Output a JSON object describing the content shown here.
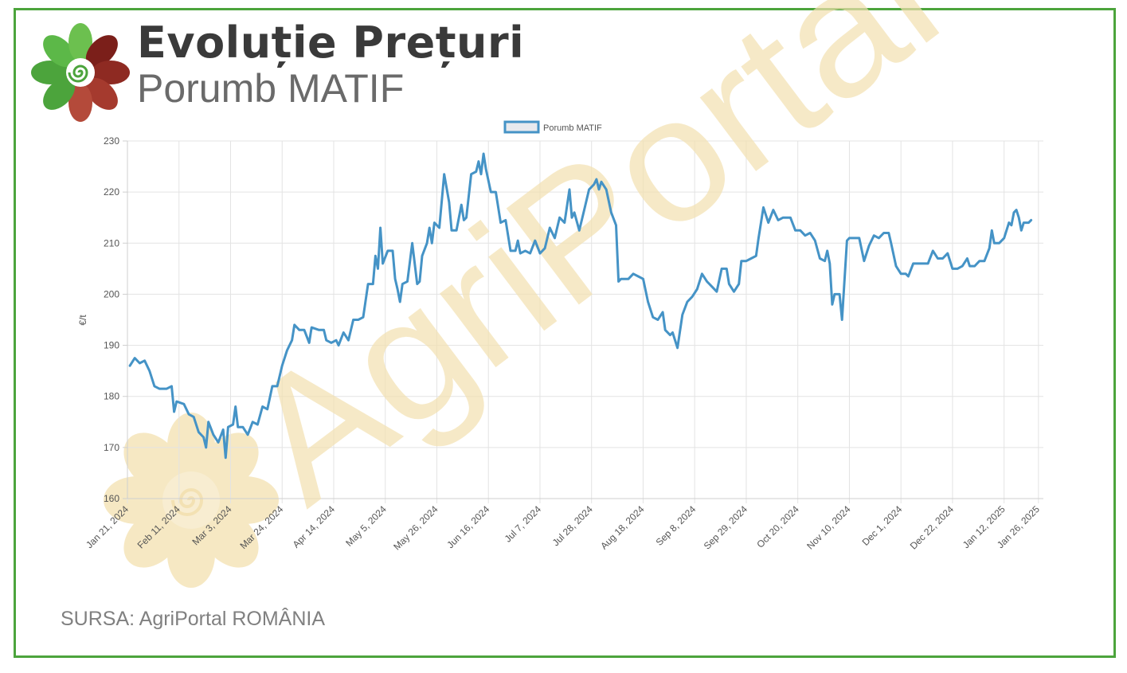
{
  "header": {
    "title": "Evoluție Prețuri",
    "subtitle": "Porumb MATIF"
  },
  "footer": {
    "source": "SURSA: AgriPortal ROMÂNIA"
  },
  "watermark": {
    "text": "AgriPortal"
  },
  "colors": {
    "frame": "#4ca43c",
    "line": "#4593c6",
    "grid": "#e3e3e3",
    "watermark": "#f3e1b0"
  },
  "chart_data": {
    "type": "line",
    "title": "",
    "xlabel": "",
    "ylabel": "€/t",
    "ylim": [
      160,
      230
    ],
    "yticks": [
      160,
      170,
      180,
      190,
      200,
      210,
      220,
      230
    ],
    "xlim": [
      "2024-01-21",
      "2025-01-28"
    ],
    "xticks": [
      "Jan 21, 2024",
      "Feb 11, 2024",
      "Mar 3, 2024",
      "Mar 24, 2024",
      "Apr 14, 2024",
      "May 5, 2024",
      "May 26, 2024",
      "Jun 16, 2024",
      "Jul 7, 2024",
      "Jul 28, 2024",
      "Aug 18, 2024",
      "Sep 8, 2024",
      "Sep 29, 2024",
      "Oct 20, 2024",
      "Nov 10, 2024",
      "Dec 1, 2024",
      "Dec 22, 2024",
      "Jan 12, 2025",
      "Jan 26, 2025"
    ],
    "xtick_dates": [
      "2024-01-21",
      "2024-02-11",
      "2024-03-03",
      "2024-03-24",
      "2024-04-14",
      "2024-05-05",
      "2024-05-26",
      "2024-06-16",
      "2024-07-07",
      "2024-07-28",
      "2024-08-18",
      "2024-09-08",
      "2024-09-29",
      "2024-10-20",
      "2024-11-10",
      "2024-12-01",
      "2024-12-22",
      "2025-01-12",
      "2025-01-26"
    ],
    "grid": true,
    "legend_position": "top",
    "series": [
      {
        "name": "Porumb MATIF",
        "points": [
          [
            "2024-01-22",
            186
          ],
          [
            "2024-01-24",
            187.5
          ],
          [
            "2024-01-26",
            186.5
          ],
          [
            "2024-01-28",
            187
          ],
          [
            "2024-01-30",
            185
          ],
          [
            "2024-02-01",
            182
          ],
          [
            "2024-02-03",
            181.5
          ],
          [
            "2024-02-06",
            181.5
          ],
          [
            "2024-02-08",
            182
          ],
          [
            "2024-02-09",
            177
          ],
          [
            "2024-02-10",
            179
          ],
          [
            "2024-02-13",
            178.5
          ],
          [
            "2024-02-15",
            176.5
          ],
          [
            "2024-02-17",
            176
          ],
          [
            "2024-02-19",
            173
          ],
          [
            "2024-02-21",
            172
          ],
          [
            "2024-02-22",
            170
          ],
          [
            "2024-02-23",
            175
          ],
          [
            "2024-02-25",
            172.5
          ],
          [
            "2024-02-27",
            171
          ],
          [
            "2024-02-29",
            173.5
          ],
          [
            "2024-03-01",
            168
          ],
          [
            "2024-03-02",
            174
          ],
          [
            "2024-03-04",
            174.5
          ],
          [
            "2024-03-05",
            178
          ],
          [
            "2024-03-06",
            174
          ],
          [
            "2024-03-08",
            174
          ],
          [
            "2024-03-10",
            172.5
          ],
          [
            "2024-03-12",
            175
          ],
          [
            "2024-03-14",
            174.5
          ],
          [
            "2024-03-16",
            178
          ],
          [
            "2024-03-18",
            177.5
          ],
          [
            "2024-03-20",
            182
          ],
          [
            "2024-03-22",
            182
          ],
          [
            "2024-03-24",
            186
          ],
          [
            "2024-03-26",
            189
          ],
          [
            "2024-03-28",
            191
          ],
          [
            "2024-03-29",
            194
          ],
          [
            "2024-03-31",
            193
          ],
          [
            "2024-04-02",
            193
          ],
          [
            "2024-04-04",
            190.5
          ],
          [
            "2024-04-05",
            193.5
          ],
          [
            "2024-04-08",
            193
          ],
          [
            "2024-04-10",
            193
          ],
          [
            "2024-04-11",
            191
          ],
          [
            "2024-04-13",
            190.5
          ],
          [
            "2024-04-15",
            191
          ],
          [
            "2024-04-16",
            190
          ],
          [
            "2024-04-18",
            192.5
          ],
          [
            "2024-04-20",
            191
          ],
          [
            "2024-04-22",
            195
          ],
          [
            "2024-04-24",
            195
          ],
          [
            "2024-04-26",
            195.5
          ],
          [
            "2024-04-28",
            202
          ],
          [
            "2024-04-30",
            202
          ],
          [
            "2024-05-01",
            207.5
          ],
          [
            "2024-05-02",
            205
          ],
          [
            "2024-05-03",
            213
          ],
          [
            "2024-05-04",
            206
          ],
          [
            "2024-05-06",
            208.5
          ],
          [
            "2024-05-08",
            208.5
          ],
          [
            "2024-05-09",
            203
          ],
          [
            "2024-05-10",
            201
          ],
          [
            "2024-05-11",
            198.5
          ],
          [
            "2024-05-12",
            202
          ],
          [
            "2024-05-14",
            202.5
          ],
          [
            "2024-05-16",
            210
          ],
          [
            "2024-05-18",
            202
          ],
          [
            "2024-05-19",
            202.5
          ],
          [
            "2024-05-20",
            207.5
          ],
          [
            "2024-05-22",
            210
          ],
          [
            "2024-05-23",
            213
          ],
          [
            "2024-05-24",
            210
          ],
          [
            "2024-05-25",
            214
          ],
          [
            "2024-05-27",
            213
          ],
          [
            "2024-05-29",
            223.5
          ],
          [
            "2024-05-31",
            218
          ],
          [
            "2024-06-01",
            212.5
          ],
          [
            "2024-06-03",
            212.5
          ],
          [
            "2024-06-05",
            217.5
          ],
          [
            "2024-06-06",
            214.5
          ],
          [
            "2024-06-07",
            215
          ],
          [
            "2024-06-09",
            223.5
          ],
          [
            "2024-06-11",
            224
          ],
          [
            "2024-06-12",
            226
          ],
          [
            "2024-06-13",
            223.5
          ],
          [
            "2024-06-14",
            227.5
          ],
          [
            "2024-06-15",
            224.5
          ],
          [
            "2024-06-17",
            220
          ],
          [
            "2024-06-19",
            220
          ],
          [
            "2024-06-21",
            214
          ],
          [
            "2024-06-23",
            214.5
          ],
          [
            "2024-06-25",
            208.5
          ],
          [
            "2024-06-27",
            208.5
          ],
          [
            "2024-06-28",
            210.5
          ],
          [
            "2024-06-29",
            208
          ],
          [
            "2024-07-01",
            208.5
          ],
          [
            "2024-07-03",
            208
          ],
          [
            "2024-07-05",
            210.5
          ],
          [
            "2024-07-07",
            208
          ],
          [
            "2024-07-09",
            209
          ],
          [
            "2024-07-11",
            213
          ],
          [
            "2024-07-13",
            211
          ],
          [
            "2024-07-15",
            215
          ],
          [
            "2024-07-17",
            214
          ],
          [
            "2024-07-19",
            220.5
          ],
          [
            "2024-07-20",
            215
          ],
          [
            "2024-07-21",
            216
          ],
          [
            "2024-07-23",
            212.5
          ],
          [
            "2024-07-25",
            216.5
          ],
          [
            "2024-07-27",
            220.5
          ],
          [
            "2024-07-29",
            221.5
          ],
          [
            "2024-07-30",
            222.5
          ],
          [
            "2024-07-31",
            220.5
          ],
          [
            "2024-08-01",
            222
          ],
          [
            "2024-08-03",
            220.5
          ],
          [
            "2024-08-05",
            216
          ],
          [
            "2024-08-07",
            213.5
          ],
          [
            "2024-08-08",
            202.5
          ],
          [
            "2024-08-09",
            203
          ],
          [
            "2024-08-12",
            203
          ],
          [
            "2024-08-14",
            204
          ],
          [
            "2024-08-16",
            203.5
          ],
          [
            "2024-08-18",
            203
          ],
          [
            "2024-08-20",
            198.5
          ],
          [
            "2024-08-22",
            195.5
          ],
          [
            "2024-08-24",
            195
          ],
          [
            "2024-08-26",
            196.5
          ],
          [
            "2024-08-27",
            193
          ],
          [
            "2024-08-29",
            192
          ],
          [
            "2024-08-30",
            192.5
          ],
          [
            "2024-09-01",
            189.5
          ],
          [
            "2024-09-03",
            196
          ],
          [
            "2024-09-05",
            198.5
          ],
          [
            "2024-09-07",
            199.5
          ],
          [
            "2024-09-09",
            201
          ],
          [
            "2024-09-11",
            204
          ],
          [
            "2024-09-13",
            202.5
          ],
          [
            "2024-09-15",
            201.5
          ],
          [
            "2024-09-17",
            200.5
          ],
          [
            "2024-09-19",
            205
          ],
          [
            "2024-09-21",
            205
          ],
          [
            "2024-09-22",
            202
          ],
          [
            "2024-09-24",
            200.5
          ],
          [
            "2024-09-26",
            202
          ],
          [
            "2024-09-27",
            206.5
          ],
          [
            "2024-09-29",
            206.5
          ],
          [
            "2024-10-01",
            207
          ],
          [
            "2024-10-03",
            207.5
          ],
          [
            "2024-10-04",
            211
          ],
          [
            "2024-10-06",
            217
          ],
          [
            "2024-10-08",
            214
          ],
          [
            "2024-10-10",
            216.5
          ],
          [
            "2024-10-12",
            214.5
          ],
          [
            "2024-10-14",
            215
          ],
          [
            "2024-10-17",
            215
          ],
          [
            "2024-10-19",
            212.5
          ],
          [
            "2024-10-21",
            212.5
          ],
          [
            "2024-10-23",
            211.5
          ],
          [
            "2024-10-25",
            212
          ],
          [
            "2024-10-27",
            210.5
          ],
          [
            "2024-10-29",
            207
          ],
          [
            "2024-10-31",
            206.5
          ],
          [
            "2024-11-01",
            208.5
          ],
          [
            "2024-11-02",
            206
          ],
          [
            "2024-11-03",
            198
          ],
          [
            "2024-11-04",
            200
          ],
          [
            "2024-11-06",
            200
          ],
          [
            "2024-11-07",
            195
          ],
          [
            "2024-11-09",
            210.5
          ],
          [
            "2024-11-10",
            211
          ],
          [
            "2024-11-12",
            211
          ],
          [
            "2024-11-14",
            211
          ],
          [
            "2024-11-16",
            206.5
          ],
          [
            "2024-11-18",
            209.5
          ],
          [
            "2024-11-20",
            211.5
          ],
          [
            "2024-11-22",
            211
          ],
          [
            "2024-11-24",
            212
          ],
          [
            "2024-11-26",
            212
          ],
          [
            "2024-11-27",
            210
          ],
          [
            "2024-11-29",
            205.5
          ],
          [
            "2024-12-01",
            204
          ],
          [
            "2024-12-03",
            204
          ],
          [
            "2024-12-04",
            203.5
          ],
          [
            "2024-12-06",
            206
          ],
          [
            "2024-12-08",
            206
          ],
          [
            "2024-12-10",
            206
          ],
          [
            "2024-12-12",
            206
          ],
          [
            "2024-12-14",
            208.5
          ],
          [
            "2024-12-16",
            207
          ],
          [
            "2024-12-18",
            207
          ],
          [
            "2024-12-20",
            208
          ],
          [
            "2024-12-22",
            205
          ],
          [
            "2024-12-24",
            205
          ],
          [
            "2024-12-26",
            205.5
          ],
          [
            "2024-12-28",
            207
          ],
          [
            "2024-12-29",
            205.5
          ],
          [
            "2024-12-31",
            205.5
          ],
          [
            "2025-01-02",
            206.5
          ],
          [
            "2025-01-04",
            206.5
          ],
          [
            "2025-01-06",
            209
          ],
          [
            "2025-01-07",
            212.5
          ],
          [
            "2025-01-08",
            210
          ],
          [
            "2025-01-10",
            210
          ],
          [
            "2025-01-12",
            211
          ],
          [
            "2025-01-14",
            214
          ],
          [
            "2025-01-15",
            213.5
          ],
          [
            "2025-01-16",
            216
          ],
          [
            "2025-01-17",
            216.5
          ],
          [
            "2025-01-18",
            215
          ],
          [
            "2025-01-19",
            212.5
          ],
          [
            "2025-01-20",
            214
          ],
          [
            "2025-01-22",
            214
          ],
          [
            "2025-01-23",
            214.5
          ]
        ]
      }
    ]
  }
}
